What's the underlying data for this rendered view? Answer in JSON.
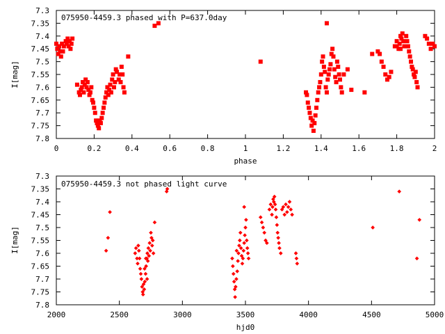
{
  "chart_data": [
    {
      "type": "scatter",
      "title": "075950-4459.3 phased with P=637.0day",
      "xlabel": "phase",
      "ylabel": "I[mag]",
      "xlim": [
        0,
        2
      ],
      "ylim": [
        7.3,
        7.8
      ],
      "y_inverted": true,
      "x_ticks": [
        "0",
        "0.2",
        "0.4",
        "0.6",
        "0.8",
        "1",
        "1.2",
        "1.4",
        "1.6",
        "1.8",
        "2"
      ],
      "y_ticks": [
        "7.3",
        "7.35",
        "7.4",
        "7.45",
        "7.5",
        "7.55",
        "7.6",
        "7.65",
        "7.7",
        "7.75",
        "7.8"
      ],
      "grid": false,
      "legend": "none",
      "color": "#ff0000",
      "points": [
        [
          0.0,
          7.43
        ],
        [
          0.005,
          7.45
        ],
        [
          0.01,
          7.47
        ],
        [
          0.015,
          7.44
        ],
        [
          0.02,
          7.46
        ],
        [
          0.025,
          7.48
        ],
        [
          0.03,
          7.43
        ],
        [
          0.035,
          7.46
        ],
        [
          0.04,
          7.44
        ],
        [
          0.05,
          7.42
        ],
        [
          0.055,
          7.43
        ],
        [
          0.06,
          7.41
        ],
        [
          0.065,
          7.44
        ],
        [
          0.07,
          7.42
        ],
        [
          0.075,
          7.45
        ],
        [
          0.08,
          7.43
        ],
        [
          0.085,
          7.41
        ],
        [
          0.11,
          7.59
        ],
        [
          0.12,
          7.62
        ],
        [
          0.125,
          7.63
        ],
        [
          0.13,
          7.61
        ],
        [
          0.135,
          7.6
        ],
        [
          0.14,
          7.58
        ],
        [
          0.145,
          7.62
        ],
        [
          0.15,
          7.59
        ],
        [
          0.155,
          7.57
        ],
        [
          0.16,
          7.6
        ],
        [
          0.165,
          7.58
        ],
        [
          0.17,
          7.61
        ],
        [
          0.175,
          7.63
        ],
        [
          0.18,
          7.62
        ],
        [
          0.185,
          7.6
        ],
        [
          0.19,
          7.65
        ],
        [
          0.195,
          7.66
        ],
        [
          0.2,
          7.68
        ],
        [
          0.205,
          7.7
        ],
        [
          0.21,
          7.73
        ],
        [
          0.215,
          7.74
        ],
        [
          0.22,
          7.75
        ],
        [
          0.225,
          7.76
        ],
        [
          0.23,
          7.73
        ],
        [
          0.235,
          7.74
        ],
        [
          0.24,
          7.72
        ],
        [
          0.245,
          7.7
        ],
        [
          0.25,
          7.68
        ],
        [
          0.255,
          7.66
        ],
        [
          0.26,
          7.64
        ],
        [
          0.265,
          7.62
        ],
        [
          0.27,
          7.6
        ],
        [
          0.275,
          7.63
        ],
        [
          0.28,
          7.61
        ],
        [
          0.285,
          7.59
        ],
        [
          0.29,
          7.62
        ],
        [
          0.295,
          7.57
        ],
        [
          0.3,
          7.55
        ],
        [
          0.305,
          7.6
        ],
        [
          0.31,
          7.58
        ],
        [
          0.315,
          7.53
        ],
        [
          0.32,
          7.54
        ],
        [
          0.33,
          7.57
        ],
        [
          0.335,
          7.55
        ],
        [
          0.34,
          7.58
        ],
        [
          0.345,
          7.52
        ],
        [
          0.35,
          7.55
        ],
        [
          0.355,
          7.6
        ],
        [
          0.36,
          7.62
        ],
        [
          0.38,
          7.48
        ],
        [
          0.52,
          7.36
        ],
        [
          0.54,
          7.35
        ],
        [
          1.08,
          7.5
        ],
        [
          1.32,
          7.62
        ],
        [
          1.325,
          7.63
        ],
        [
          1.33,
          7.66
        ],
        [
          1.335,
          7.68
        ],
        [
          1.34,
          7.7
        ],
        [
          1.345,
          7.72
        ],
        [
          1.35,
          7.75
        ],
        [
          1.355,
          7.73
        ],
        [
          1.36,
          7.77
        ],
        [
          1.365,
          7.74
        ],
        [
          1.37,
          7.71
        ],
        [
          1.375,
          7.68
        ],
        [
          1.38,
          7.65
        ],
        [
          1.385,
          7.62
        ],
        [
          1.39,
          7.6
        ],
        [
          1.395,
          7.58
        ],
        [
          1.4,
          7.55
        ],
        [
          1.405,
          7.5
        ],
        [
          1.41,
          7.48
        ],
        [
          1.415,
          7.52
        ],
        [
          1.42,
          7.54
        ],
        [
          1.425,
          7.6
        ],
        [
          1.43,
          7.62
        ],
        [
          1.435,
          7.57
        ],
        [
          1.44,
          7.55
        ],
        [
          1.445,
          7.53
        ],
        [
          1.45,
          7.51
        ],
        [
          1.455,
          7.47
        ],
        [
          1.46,
          7.45
        ],
        [
          1.465,
          7.48
        ],
        [
          1.47,
          7.53
        ],
        [
          1.475,
          7.56
        ],
        [
          1.48,
          7.58
        ],
        [
          1.485,
          7.5
        ],
        [
          1.49,
          7.52
        ],
        [
          1.495,
          7.55
        ],
        [
          1.5,
          7.57
        ],
        [
          1.505,
          7.6
        ],
        [
          1.51,
          7.62
        ],
        [
          1.43,
          7.35
        ],
        [
          1.52,
          7.55
        ],
        [
          1.54,
          7.53
        ],
        [
          1.56,
          7.61
        ],
        [
          1.63,
          7.62
        ],
        [
          1.67,
          7.47
        ],
        [
          1.7,
          7.46
        ],
        [
          1.71,
          7.47
        ],
        [
          1.72,
          7.5
        ],
        [
          1.73,
          7.52
        ],
        [
          1.74,
          7.55
        ],
        [
          1.75,
          7.57
        ],
        [
          1.76,
          7.56
        ],
        [
          1.77,
          7.54
        ],
        [
          1.79,
          7.44
        ],
        [
          1.8,
          7.42
        ],
        [
          1.81,
          7.45
        ],
        [
          1.815,
          7.43
        ],
        [
          1.82,
          7.4
        ],
        [
          1.825,
          7.41
        ],
        [
          1.83,
          7.39
        ],
        [
          1.835,
          7.42
        ],
        [
          1.84,
          7.44
        ],
        [
          1.85,
          7.4
        ],
        [
          1.855,
          7.42
        ],
        [
          1.86,
          7.44
        ],
        [
          1.865,
          7.46
        ],
        [
          1.87,
          7.48
        ],
        [
          1.875,
          7.5
        ],
        [
          1.88,
          7.52
        ],
        [
          1.885,
          7.53
        ],
        [
          1.89,
          7.55
        ],
        [
          1.895,
          7.56
        ],
        [
          1.9,
          7.54
        ],
        [
          1.905,
          7.58
        ],
        [
          1.91,
          7.6
        ],
        [
          1.8,
          7.44
        ],
        [
          1.82,
          7.45
        ],
        [
          1.95,
          7.4
        ],
        [
          1.96,
          7.41
        ],
        [
          1.97,
          7.43
        ],
        [
          1.98,
          7.45
        ],
        [
          1.99,
          7.43
        ],
        [
          2.0,
          7.44
        ]
      ]
    },
    {
      "type": "scatter",
      "title": "075950-4459.3 not phased light curve",
      "xlabel": "hjd0",
      "ylabel": "I[mag]",
      "xlim": [
        2000,
        5000
      ],
      "ylim": [
        7.3,
        7.8
      ],
      "y_inverted": true,
      "x_ticks": [
        "2000",
        "2500",
        "3000",
        "3500",
        "4000",
        "4500",
        "5000"
      ],
      "y_ticks": [
        "7.3",
        "7.35",
        "7.4",
        "7.45",
        "7.5",
        "7.55",
        "7.6",
        "7.65",
        "7.7",
        "7.75",
        "7.8"
      ],
      "grid": false,
      "legend": "none",
      "color": "#ff0000",
      "points": [
        [
          2395,
          7.59
        ],
        [
          2410,
          7.54
        ],
        [
          2425,
          7.44
        ],
        [
          2625,
          7.6
        ],
        [
          2632,
          7.58
        ],
        [
          2640,
          7.62
        ],
        [
          2645,
          7.64
        ],
        [
          2650,
          7.57
        ],
        [
          2655,
          7.59
        ],
        [
          2660,
          7.62
        ],
        [
          2665,
          7.66
        ],
        [
          2670,
          7.68
        ],
        [
          2675,
          7.7
        ],
        [
          2680,
          7.73
        ],
        [
          2685,
          7.75
        ],
        [
          2688,
          7.76
        ],
        [
          2692,
          7.72
        ],
        [
          2697,
          7.74
        ],
        [
          2702,
          7.71
        ],
        [
          2708,
          7.68
        ],
        [
          2712,
          7.65
        ],
        [
          2718,
          7.62
        ],
        [
          2722,
          7.6
        ],
        [
          2726,
          7.63
        ],
        [
          2730,
          7.58
        ],
        [
          2735,
          7.61
        ],
        [
          2740,
          7.56
        ],
        [
          2745,
          7.59
        ],
        [
          2750,
          7.52
        ],
        [
          2755,
          7.54
        ],
        [
          2760,
          7.57
        ],
        [
          2765,
          7.55
        ],
        [
          2770,
          7.6
        ],
        [
          2780,
          7.48
        ],
        [
          2710,
          7.62
        ],
        [
          2700,
          7.66
        ],
        [
          2720,
          7.7
        ],
        [
          2875,
          7.36
        ],
        [
          2880,
          7.35
        ],
        [
          3395,
          7.62
        ],
        [
          3400,
          7.65
        ],
        [
          3405,
          7.68
        ],
        [
          3410,
          7.71
        ],
        [
          3415,
          7.74
        ],
        [
          3418,
          7.77
        ],
        [
          3422,
          7.73
        ],
        [
          3428,
          7.7
        ],
        [
          3435,
          7.67
        ],
        [
          3440,
          7.63
        ],
        [
          3445,
          7.6
        ],
        [
          3450,
          7.57
        ],
        [
          3455,
          7.55
        ],
        [
          3460,
          7.52
        ],
        [
          3465,
          7.58
        ],
        [
          3470,
          7.61
        ],
        [
          3475,
          7.64
        ],
        [
          3480,
          7.62
        ],
        [
          3485,
          7.59
        ],
        [
          3490,
          7.56
        ],
        [
          3495,
          7.53
        ],
        [
          3500,
          7.5
        ],
        [
          3505,
          7.47
        ],
        [
          3510,
          7.55
        ],
        [
          3515,
          7.58
        ],
        [
          3520,
          7.6
        ],
        [
          3525,
          7.62
        ],
        [
          3490,
          7.42
        ],
        [
          3430,
          7.59
        ],
        [
          3620,
          7.46
        ],
        [
          3630,
          7.48
        ],
        [
          3640,
          7.5
        ],
        [
          3650,
          7.52
        ],
        [
          3660,
          7.55
        ],
        [
          3670,
          7.56
        ],
        [
          3690,
          7.43
        ],
        [
          3700,
          7.41
        ],
        [
          3710,
          7.45
        ],
        [
          3715,
          7.42
        ],
        [
          3720,
          7.39
        ],
        [
          3725,
          7.4
        ],
        [
          3730,
          7.38
        ],
        [
          3735,
          7.41
        ],
        [
          3740,
          7.43
        ],
        [
          3745,
          7.46
        ],
        [
          3750,
          7.49
        ],
        [
          3755,
          7.52
        ],
        [
          3760,
          7.54
        ],
        [
          3765,
          7.56
        ],
        [
          3770,
          7.58
        ],
        [
          3780,
          7.6
        ],
        [
          3790,
          7.43
        ],
        [
          3800,
          7.42
        ],
        [
          3810,
          7.45
        ],
        [
          3820,
          7.41
        ],
        [
          3830,
          7.44
        ],
        [
          3840,
          7.42
        ],
        [
          3850,
          7.4
        ],
        [
          3860,
          7.43
        ],
        [
          3870,
          7.45
        ],
        [
          3900,
          7.6
        ],
        [
          3905,
          7.62
        ],
        [
          3910,
          7.64
        ],
        [
          4510,
          7.5
        ],
        [
          4720,
          7.36
        ],
        [
          4860,
          7.62
        ],
        [
          4880,
          7.47
        ]
      ]
    }
  ]
}
